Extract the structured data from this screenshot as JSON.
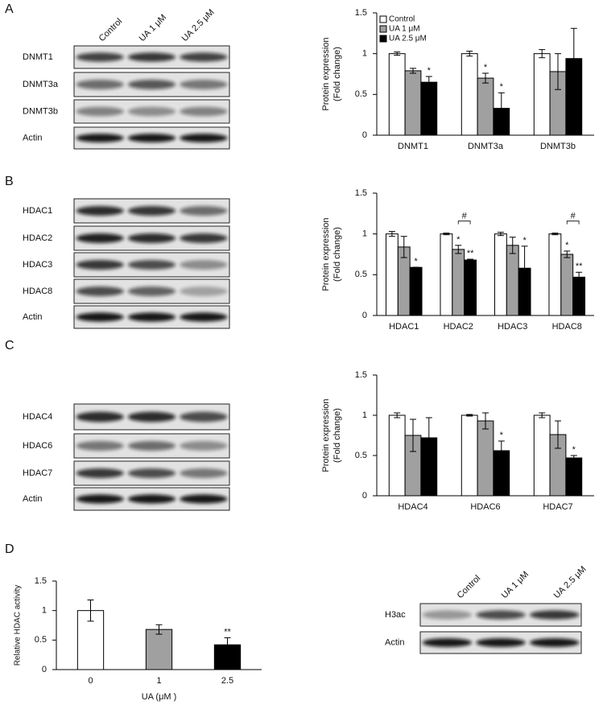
{
  "panel_labels": [
    "A",
    "B",
    "C",
    "D"
  ],
  "blots": [
    {
      "columns": [
        "Control",
        "UA 1 μM",
        "UA 2.5 μM"
      ],
      "rows": [
        "DNMT1",
        "DNMT3a",
        "DNMT3b",
        "Actin"
      ]
    },
    {
      "rows": [
        "HDAC1",
        "HDAC2",
        "HDAC3",
        "HDAC8",
        "Actin"
      ]
    },
    {
      "rows": [
        "HDAC4",
        "HDAC6",
        "HDAC7",
        "Actin"
      ]
    },
    {
      "columns": [
        "Control",
        "UA 1 μM",
        "UA 2.5 μM"
      ],
      "rows": [
        "H3ac",
        "Actin"
      ]
    }
  ],
  "chart_data": [
    {
      "type": "bar",
      "ylabel": [
        "Protein expression",
        "(Fold change)"
      ],
      "categories": [
        "DNMT1",
        "DNMT3a",
        "DNMT3b"
      ],
      "legend": "upper left",
      "ylim": [
        0,
        1.5
      ],
      "yticks": [
        0,
        0.5,
        1,
        1.5
      ],
      "series": [
        {
          "name": "Control",
          "color": "#ffffff",
          "values": [
            1,
            1,
            1
          ],
          "errors": [
            0.02,
            0.03,
            0.05
          ]
        },
        {
          "name": "UA 1 μM",
          "color": "#a0a0a0",
          "values": [
            0.79,
            0.7,
            0.78
          ],
          "errors": [
            0.03,
            0.06,
            0.22
          ],
          "significance": [
            null,
            "*",
            null
          ]
        },
        {
          "name": "UA 2.5 μM",
          "color": "#000000",
          "values": [
            0.65,
            0.33,
            0.94
          ],
          "errors": [
            0.07,
            0.19,
            0.37
          ],
          "significance": [
            "*",
            "*",
            null
          ]
        }
      ]
    },
    {
      "type": "bar",
      "ylabel": [
        "Protein expression",
        "(Fold change)"
      ],
      "categories": [
        "HDAC1",
        "HDAC2",
        "HDAC3",
        "HDAC8"
      ],
      "ylim": [
        0,
        1.5
      ],
      "yticks": [
        0,
        0.5,
        1,
        1.5
      ],
      "bracket_labels": [
        null,
        "#",
        null,
        "#"
      ],
      "series": [
        {
          "color": "#ffffff",
          "values": [
            1,
            1,
            1,
            1
          ],
          "errors": [
            0.03,
            0.01,
            0.02,
            0.01
          ]
        },
        {
          "color": "#a0a0a0",
          "values": [
            0.84,
            0.81,
            0.86,
            0.75
          ],
          "errors": [
            0.13,
            0.05,
            0.1,
            0.04
          ],
          "significance": [
            null,
            "*",
            null,
            "*"
          ]
        },
        {
          "color": "#000000",
          "values": [
            0.59,
            0.68,
            0.58,
            0.47
          ],
          "errors": [
            0,
            0.01,
            0.27,
            0.06
          ],
          "significance": [
            "*",
            "**",
            "*",
            "**"
          ]
        }
      ]
    },
    {
      "type": "bar",
      "ylabel": [
        "Protein expression",
        "(Fold change)"
      ],
      "categories": [
        "HDAC4",
        "HDAC6",
        "HDAC7"
      ],
      "ylim": [
        0,
        1.5
      ],
      "yticks": [
        0,
        0.5,
        1,
        1.5
      ],
      "series": [
        {
          "color": "#ffffff",
          "values": [
            1,
            1,
            1
          ],
          "errors": [
            0.03,
            0.01,
            0.03
          ]
        },
        {
          "color": "#a0a0a0",
          "values": [
            0.75,
            0.93,
            0.76
          ],
          "errors": [
            0.2,
            0.1,
            0.17
          ]
        },
        {
          "color": "#000000",
          "values": [
            0.72,
            0.56,
            0.47
          ],
          "errors": [
            0.25,
            0.12,
            0.03
          ],
          "significance": [
            null,
            "*",
            "*"
          ]
        }
      ]
    },
    {
      "type": "bar",
      "ylabel": [
        "Relative HDAC activity"
      ],
      "xlabel": "UA (μM )",
      "categories": [
        "0",
        "1",
        "2.5"
      ],
      "ylim": [
        0,
        1.5
      ],
      "yticks": [
        0,
        0.5,
        1,
        1.5
      ],
      "series": [
        {
          "colors": [
            "#ffffff",
            "#a0a0a0",
            "#000000"
          ],
          "values": [
            1,
            0.68,
            0.42
          ],
          "errors": [
            0.18,
            0.08,
            0.12
          ],
          "significance": [
            null,
            null,
            "**"
          ]
        }
      ]
    }
  ]
}
